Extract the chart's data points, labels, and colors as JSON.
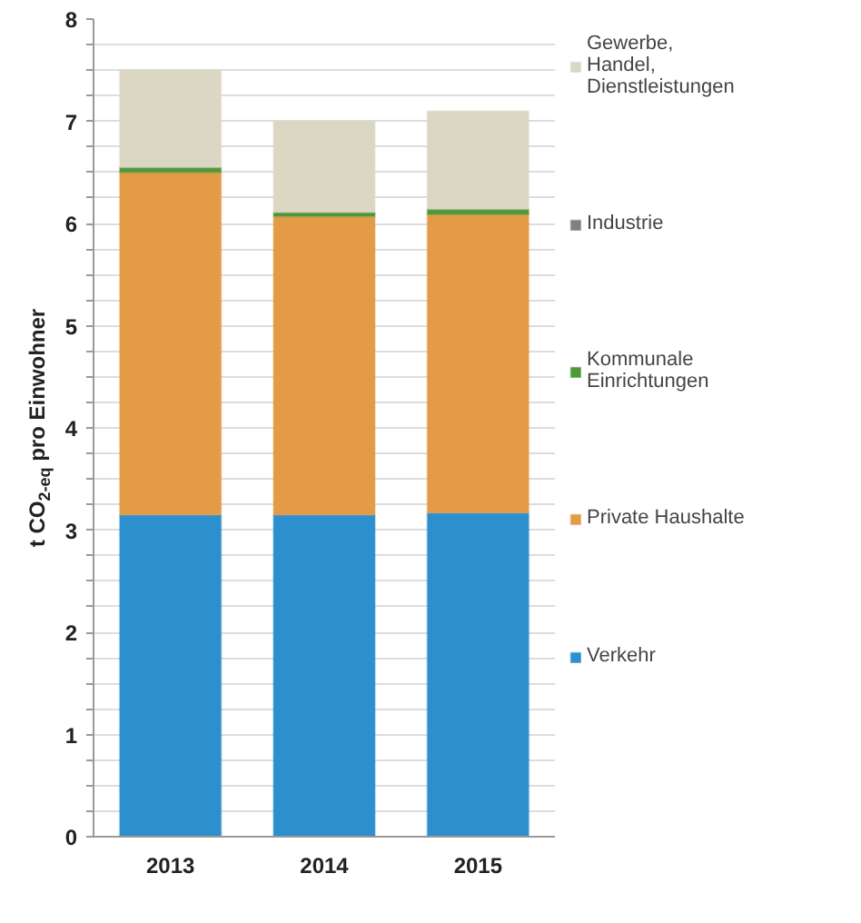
{
  "chart_data": {
    "type": "bar",
    "stacked": true,
    "ylabel": "t CO$_{2-eq}$ pro Einwohner",
    "categories": [
      "2013",
      "2014",
      "2015"
    ],
    "series": [
      {
        "name": "Verkehr",
        "color": "#2e8fce",
        "values": [
          3.15,
          3.15,
          3.17
        ]
      },
      {
        "name": "Private Haushalte",
        "color": "#e39b47",
        "values": [
          3.35,
          2.92,
          2.92
        ]
      },
      {
        "name": "Kommunale\nEinrichtungen",
        "color": "#4e9a3a",
        "values": [
          0.05,
          0.04,
          0.05
        ]
      },
      {
        "name": "Industrie",
        "color": "#808080",
        "values": [
          0,
          0,
          0
        ]
      },
      {
        "name": "Gewerbe,\nHandel,\nDienstleistungen",
        "color": "#dcd7c3",
        "values": [
          0.95,
          0.89,
          0.96
        ]
      }
    ],
    "ylim": [
      0,
      8
    ],
    "yticks": [
      0,
      {
        "value": 0.25,
        "label": null
      },
      {
        "value": 0.5,
        "label": null
      },
      {
        "value": 0.75,
        "label": null
      },
      1,
      {
        "value": 1.25,
        "label": null
      },
      {
        "value": 1.5,
        "label": null
      },
      {
        "value": 1.75,
        "label": null
      },
      2,
      {
        "value": 2.25,
        "label": null
      },
      {
        "value": 2.5,
        "label": null
      },
      {
        "value": 2.75,
        "label": null
      },
      3,
      {
        "value": 3.25,
        "label": null
      },
      {
        "value": 3.5,
        "label": null
      },
      {
        "value": 3.75,
        "label": null
      },
      4,
      {
        "value": 4.25,
        "label": null
      },
      {
        "value": 4.5,
        "label": null
      },
      {
        "value": 4.75,
        "label": null
      },
      5,
      {
        "value": 5.25,
        "label": null
      },
      {
        "value": 5.5,
        "label": null
      },
      {
        "value": 5.75,
        "label": null
      },
      6,
      {
        "value": 6.25,
        "label": null
      },
      {
        "value": 6.5,
        "label": null
      },
      {
        "value": 6.75,
        "label": null
      },
      7,
      {
        "value": 7.25,
        "label": null
      },
      {
        "value": 7.5,
        "label": null
      },
      {
        "value": 7.75,
        "label": null
      },
      8
    ],
    "grid": "y",
    "legend": "right"
  }
}
